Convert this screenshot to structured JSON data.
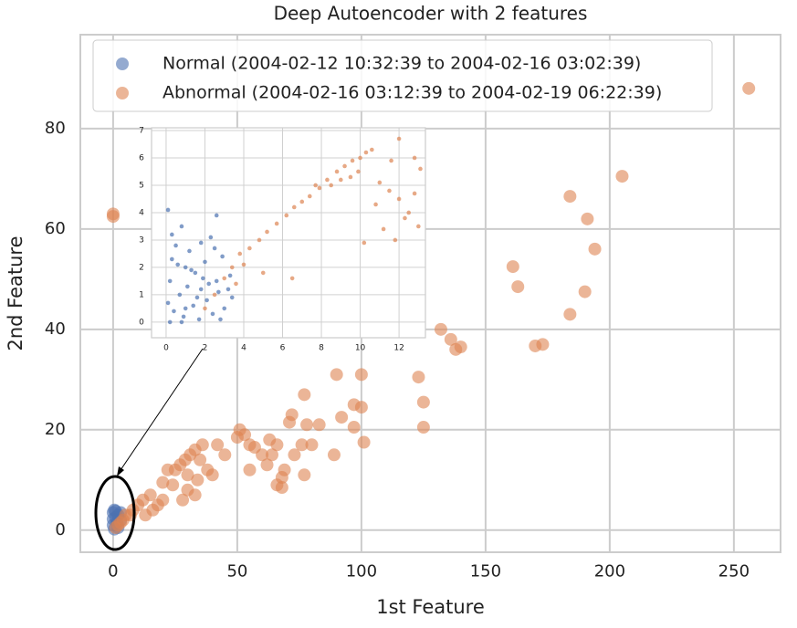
{
  "chart_data": [
    {
      "type": "scatter",
      "title": "Deep Autoencoder with 2 features",
      "x_label": "1st Feature",
      "y_label": "2nd Feature",
      "xlim": [
        -13.2,
        268.8
      ],
      "ylim": [
        -4.4,
        98.7
      ],
      "xticks": [
        0,
        50,
        100,
        150,
        200,
        250
      ],
      "yticks": [
        0,
        20,
        40,
        60,
        80
      ],
      "grid": true,
      "legend": "upper left",
      "series": [
        {
          "name": "Normal (2004-02-12 10:32:39 to 2004-02-16 03:02:39)",
          "color": "#4c72b0",
          "x": [
            0,
            0.5,
            1,
            0,
            2,
            1.5,
            0.5,
            3,
            2,
            1,
            0,
            3
          ],
          "values": [
            3.5,
            4,
            2.5,
            1,
            3,
            1.5,
            0.2,
            2,
            0.5,
            3.8,
            2.2,
            3.5
          ]
        },
        {
          "name": "Abnormal (2004-02-16 03:12:39 to 2004-02-19 06:22:39)",
          "color": "#dd8452",
          "x": [
            256,
            0,
            0,
            205,
            184,
            191,
            194,
            161,
            163,
            190,
            184,
            170,
            173,
            132,
            136,
            138,
            140,
            100,
            90,
            123,
            125,
            125,
            97,
            100,
            92,
            97,
            101,
            89,
            77,
            72,
            71,
            78,
            83,
            76,
            80,
            73,
            66,
            64,
            60,
            62,
            69,
            77,
            55,
            57,
            63,
            51,
            53,
            50,
            55,
            68,
            66,
            68,
            45,
            42,
            36,
            33,
            31,
            29,
            35,
            27,
            25,
            38,
            40,
            30,
            22,
            24,
            20,
            30,
            33,
            28,
            15,
            12,
            10,
            18,
            8,
            5,
            4,
            7,
            13,
            16,
            2,
            3,
            1,
            20,
            34
          ],
          "values": [
            88,
            63,
            62.5,
            70.5,
            66.5,
            62,
            56,
            52.5,
            48.5,
            47.5,
            43,
            36.7,
            37,
            40,
            38,
            36,
            36.5,
            31,
            31,
            30.5,
            25.5,
            20.5,
            25,
            24.5,
            22.5,
            20.5,
            17.5,
            15,
            27,
            23,
            21.5,
            21,
            21,
            17,
            17,
            15,
            17,
            15,
            15,
            13,
            12,
            11,
            17,
            16.5,
            18,
            20,
            19,
            18.5,
            12,
            10.5,
            9,
            8.5,
            15,
            17,
            17,
            16,
            15,
            14,
            14,
            13,
            12,
            12,
            11,
            11,
            12,
            9,
            9.5,
            8,
            7,
            6,
            7,
            6,
            5,
            5,
            4,
            3,
            2,
            3,
            3,
            4,
            1,
            1.5,
            0.5,
            6,
            10
          ]
        }
      ]
    },
    {
      "type": "scatter",
      "xlim": [
        -0.75,
        13.36
      ],
      "ylim": [
        -0.57,
        7.1
      ],
      "xticks": [
        0,
        2,
        4,
        6,
        8,
        10,
        12
      ],
      "yticks": [
        0,
        1,
        2,
        3,
        4,
        5,
        6,
        7
      ],
      "grid": true,
      "series": [
        {
          "color": "#4c72b0",
          "x": [
            0.1,
            0.3,
            0.5,
            0.8,
            1.0,
            1.2,
            1.5,
            1.8,
            2.0,
            2.3,
            2.6,
            2.9,
            3.2,
            3.4,
            0.2,
            0.4,
            0.7,
            0.9,
            1.1,
            1.4,
            1.7,
            2.1,
            2.4,
            2.7,
            3.0,
            0.1,
            0.6,
            1.3,
            1.9,
            2.5,
            3.3,
            0.3,
            0.8,
            1.6,
            2.2,
            2.8,
            0.2,
            1.0,
            1.8,
            2.6
          ],
          "values": [
            4.1,
            3.2,
            2.8,
            3.5,
            2.0,
            2.6,
            1.8,
            2.9,
            2.2,
            3.1,
            1.5,
            2.4,
            1.2,
            0.9,
            1.5,
            0.4,
            1.0,
            0.2,
            1.3,
            0.6,
            0.1,
            0.8,
            0.3,
            1.1,
            0.5,
            0.7,
            2.1,
            1.9,
            1.6,
            2.7,
            1.7,
            2.3,
            0.0,
            0.9,
            1.4,
            0.1,
            0.0,
            0.5,
            1.2,
            3.9
          ]
        },
        {
          "color": "#dd8452",
          "x": [
            2.0,
            2.5,
            3.0,
            3.4,
            3.8,
            4.3,
            4.8,
            5.2,
            5.7,
            6.2,
            6.6,
            7.0,
            7.4,
            7.9,
            8.3,
            8.8,
            9.2,
            9.6,
            10.0,
            10.3,
            10.6,
            9.5,
            9.0,
            8.5,
            11.0,
            11.5,
            12.0,
            12.5,
            13.0,
            11.8,
            12.3,
            12.8,
            10.8,
            11.2,
            9.9,
            12.0,
            12.8,
            13.1,
            11.6,
            10.2,
            5.0,
            6.5,
            4.0,
            3.6,
            7.7
          ],
          "values": [
            0.5,
            1.0,
            1.6,
            2.0,
            2.5,
            2.7,
            3.0,
            3.3,
            3.6,
            3.9,
            4.2,
            4.4,
            4.6,
            4.9,
            5.2,
            5.5,
            5.7,
            5.9,
            6.0,
            6.2,
            6.3,
            5.3,
            5.2,
            5.0,
            5.1,
            4.8,
            4.5,
            4.0,
            3.5,
            3.0,
            3.8,
            4.7,
            4.3,
            3.4,
            5.5,
            6.7,
            6.0,
            5.6,
            5.9,
            2.9,
            1.8,
            1.6,
            2.1,
            1.4,
            5.0
          ]
        }
      ]
    }
  ]
}
